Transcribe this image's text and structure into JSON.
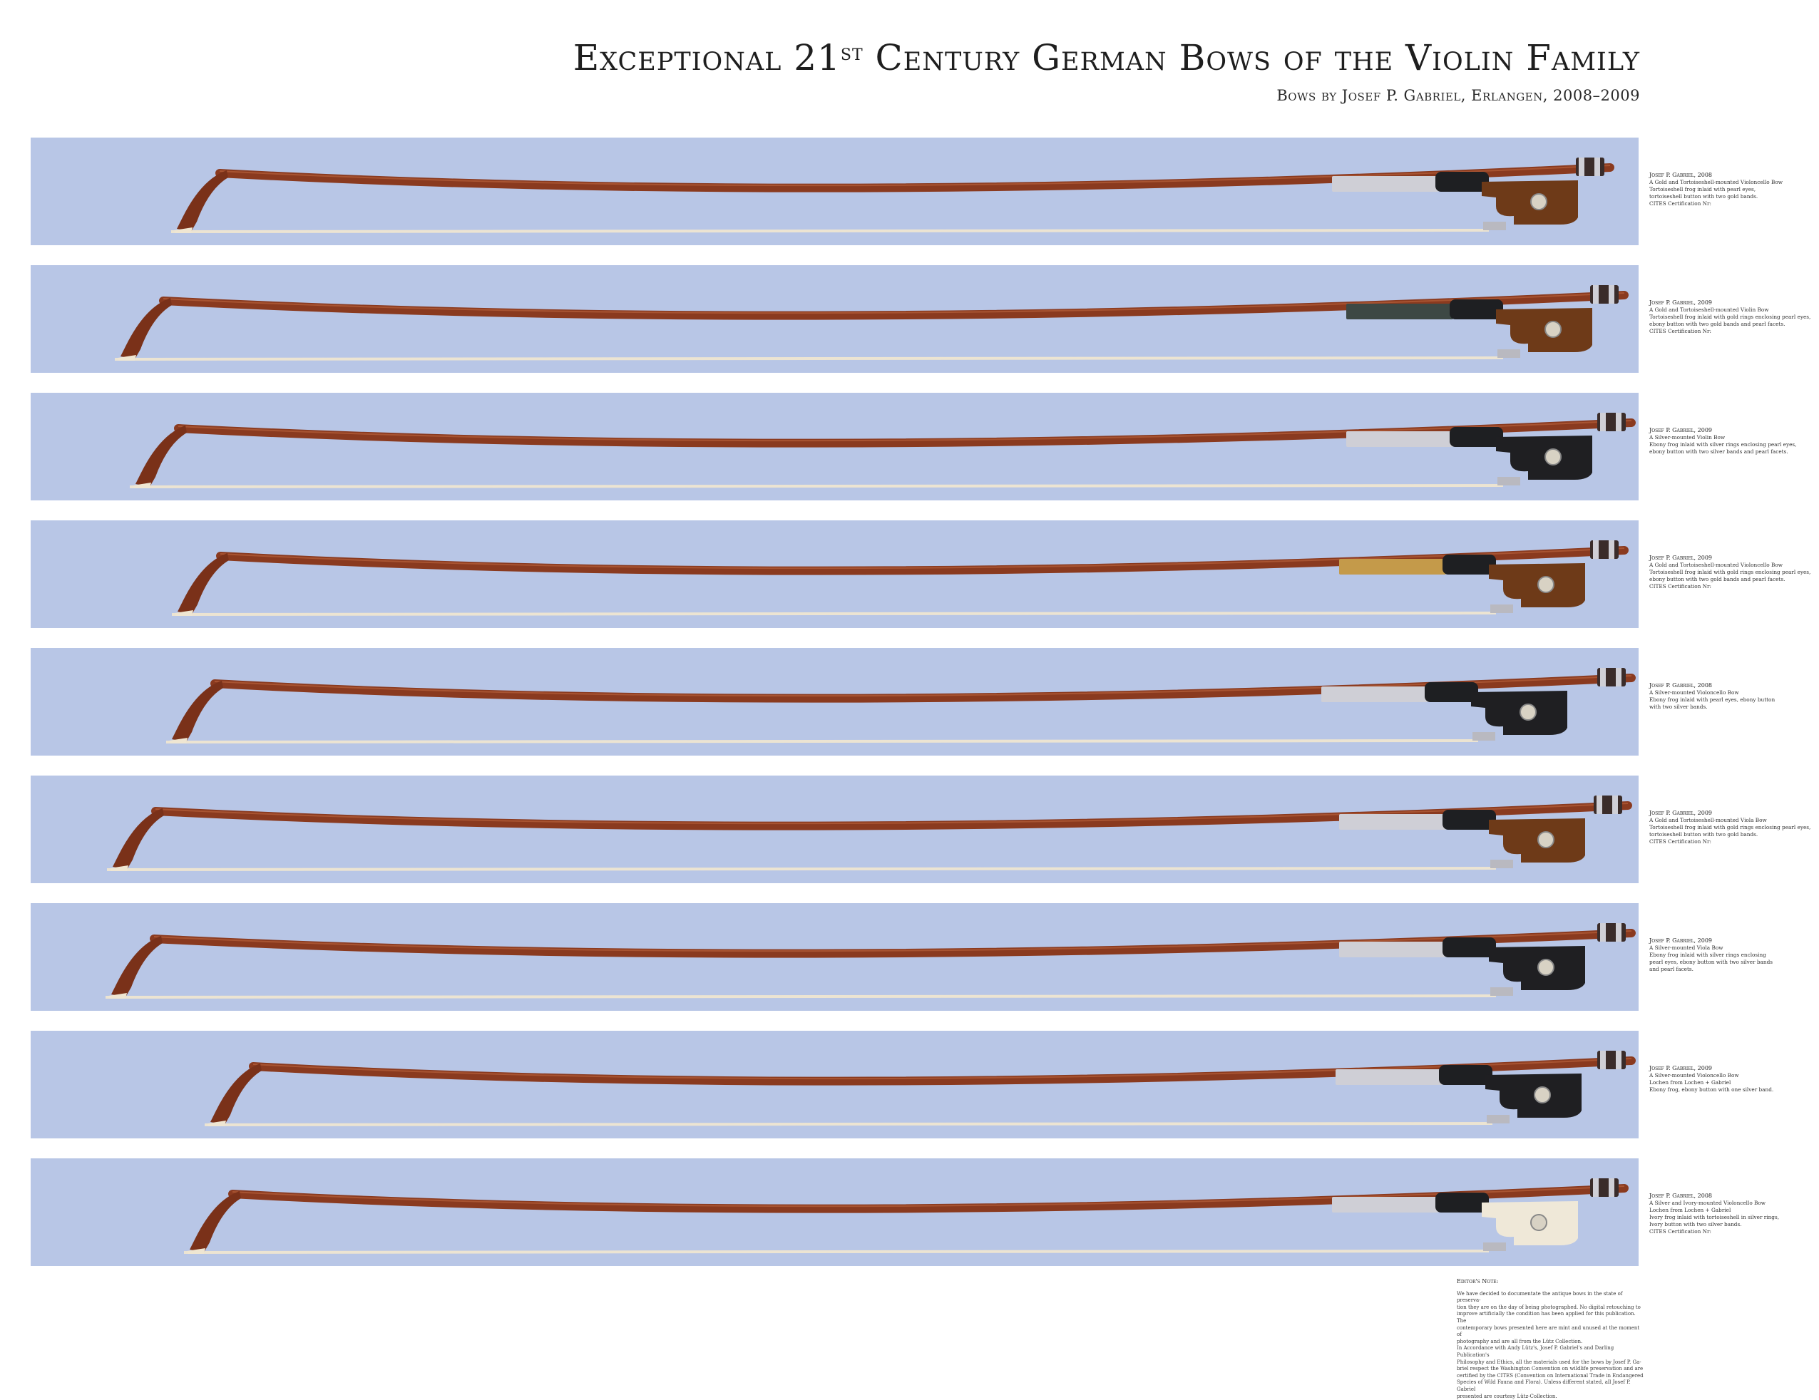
{
  "header": {
    "title_main": "Exceptional 21",
    "title_sup": "st",
    "title_rest": " Century German Bows of the Violin Family",
    "subtitle": "Bows by Josef P. Gabriel, Erlangen, 2008–2009"
  },
  "colors": {
    "band": "#b8c6e6",
    "stick": "#8a3a1f",
    "hair": "#ece4d2"
  },
  "bows": [
    {
      "maker": "Josef P. Gabriel, 2008",
      "title": "A Gold and Tortoiseshell-mounted Violoncello Bow",
      "lines": [
        "Tortoiseshell frog inlaid with pearl eyes,",
        "tortoiseshell button with two gold bands.",
        "CITES Certification Nr:"
      ],
      "frog": "tortoise",
      "wrap": "silver"
    },
    {
      "maker": "Josef P. Gabriel, 2009",
      "title": "A Gold and Tortoiseshell-mounted Violin Bow",
      "lines": [
        "Tortoiseshell frog inlaid with gold rings enclosing pearl eyes,",
        "ebony button with two gold bands and pearl facets.",
        "CITES Certification Nr:"
      ],
      "frog": "tortoise",
      "wrap": "dark"
    },
    {
      "maker": "Josef P. Gabriel, 2009",
      "title": "A Silver-mounted Violin Bow",
      "lines": [
        "Ebony frog inlaid with silver rings enclosing pearl eyes,",
        "ebony button with two silver bands and pearl facets."
      ],
      "frog": "ebony",
      "wrap": "silver"
    },
    {
      "maker": "Josef P. Gabriel, 2009",
      "title": "A Gold and Tortoiseshell-mounted Violoncello Bow",
      "lines": [
        "Tortoiseshell frog inlaid with gold rings enclosing pearl eyes,",
        "ebony button with two gold bands and pearl facets.",
        "CITES Certification Nr:"
      ],
      "frog": "tortoise",
      "wrap": "gold"
    },
    {
      "maker": "Josef P. Gabriel, 2008",
      "title": "A Silver-mounted Violoncello Bow",
      "lines": [
        "Ebony frog inlaid with pearl eyes, ebony button",
        "with two silver bands."
      ],
      "frog": "ebony",
      "wrap": "silver"
    },
    {
      "maker": "Josef P. Gabriel, 2009",
      "title": "A Gold and Tortoiseshell-mounted Viola Bow",
      "lines": [
        "Tortoiseshell frog inlaid with gold rings enclosing pearl eyes,",
        "tortoiseshell button with two gold bands.",
        "CITES Certification Nr:"
      ],
      "frog": "tortoise",
      "wrap": "silver"
    },
    {
      "maker": "Josef P. Gabriel, 2009",
      "title": "A Silver-mounted Viola Bow",
      "lines": [
        "Ebony frog inlaid with silver rings enclosing",
        "pearl eyes, ebony button with two silver bands",
        "and pearl facets."
      ],
      "frog": "ebony",
      "wrap": "silver"
    },
    {
      "maker": "Josef P. Gabriel, 2009",
      "title": "A Silver-mounted Violoncello Bow",
      "lines": [
        "Lochen from Lochen + Gabriel",
        "Ebony frog, ebony button with one silver band."
      ],
      "frog": "ebony",
      "wrap": "silver"
    },
    {
      "maker": "Josef P. Gabriel, 2008",
      "title": "A Silver and Ivory-mounted Violoncello Bow",
      "lines": [
        "Lochen from Lochen + Gabriel",
        "Ivory frog inlaid with tortoiseshell in silver rings,",
        "Ivory button with two silver bands.",
        "CITES Certification Nr:"
      ],
      "frog": "ivory",
      "wrap": "silver"
    }
  ],
  "editor_note": {
    "heading": "Editor's Note:",
    "lines": [
      "We have decided to documentate the antique bows in the state of preserva-",
      "tion they are on the day of being photographed. No digital retouching to",
      "improve artificially the condition has been applied for this publication. The",
      "contemporary bows presented here are mint and unused at the moment of",
      "photography and are all from the Lütz Collection.",
      "In Accordance with Andy Lütz's, Josef P. Gabriel's and Darling Publication's",
      "Philosophy and Ethics, all the materials used for the bows by Josef P. Ga-",
      "briel respect the Washington Convention on wildlife preservation and are",
      "certified by the CITES (Convention on International Trade in Endangered",
      "Species of Wild Fauna and Flora). Unless different stated, all Josef P. Gabriel",
      "presented are courtesy Lütz-Collection."
    ]
  }
}
